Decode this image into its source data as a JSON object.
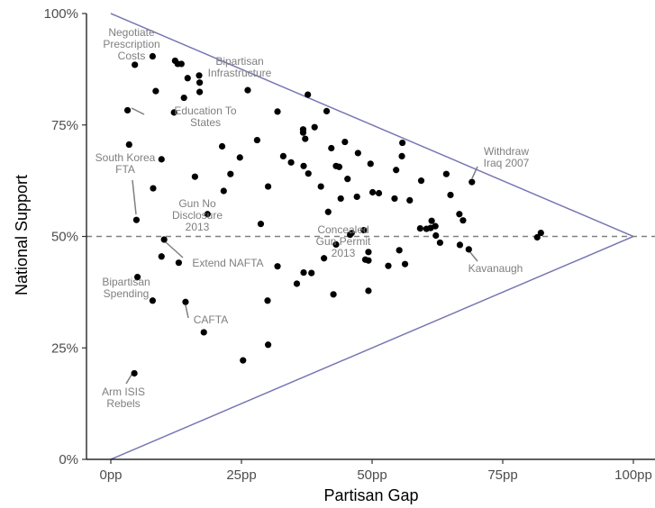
{
  "chart_data": {
    "type": "scatter",
    "xlabel": "Partisan Gap",
    "ylabel": "National Support",
    "xlim": [
      -5,
      100
    ],
    "ylim": [
      0,
      100
    ],
    "x_ticks": [
      0,
      25,
      50,
      75,
      100
    ],
    "x_tick_labels": [
      "0pp",
      "25pp",
      "50pp",
      "75pp",
      "100pp"
    ],
    "y_ticks": [
      0,
      25,
      50,
      75,
      100
    ],
    "y_tick_labels": [
      "0%",
      "25%",
      "50%",
      "75%",
      "100%"
    ],
    "grid": false,
    "colors": {
      "points": "#000000",
      "triangle": "#7777b3",
      "reference": "#808080",
      "annotation": "#7f7f7f"
    },
    "reference_line_y": 50,
    "boundary": [
      [
        0,
        100
      ],
      [
        100,
        50
      ],
      [
        0,
        0
      ]
    ],
    "points": [
      {
        "x": 8.0,
        "y": 90.4
      },
      {
        "x": 4.6,
        "y": 88.5
      },
      {
        "x": 12.3,
        "y": 89.4
      },
      {
        "x": 12.8,
        "y": 88.7
      },
      {
        "x": 13.5,
        "y": 88.7
      },
      {
        "x": 16.9,
        "y": 86.1
      },
      {
        "x": 14.7,
        "y": 85.5
      },
      {
        "x": 17.0,
        "y": 84.5
      },
      {
        "x": 8.6,
        "y": 82.6
      },
      {
        "x": 17.0,
        "y": 82.4
      },
      {
        "x": 26.2,
        "y": 82.8
      },
      {
        "x": 37.7,
        "y": 81.8
      },
      {
        "x": 14.0,
        "y": 81.1
      },
      {
        "x": 3.2,
        "y": 78.3
      },
      {
        "x": 12.1,
        "y": 77.8
      },
      {
        "x": 31.9,
        "y": 78.0
      },
      {
        "x": 41.3,
        "y": 78.1
      },
      {
        "x": 39.0,
        "y": 74.5
      },
      {
        "x": 36.8,
        "y": 74.0
      },
      {
        "x": 36.8,
        "y": 73.3
      },
      {
        "x": 37.2,
        "y": 71.9
      },
      {
        "x": 28.0,
        "y": 71.6
      },
      {
        "x": 44.8,
        "y": 71.2
      },
      {
        "x": 21.3,
        "y": 70.2
      },
      {
        "x": 42.2,
        "y": 69.8
      },
      {
        "x": 55.8,
        "y": 71.0
      },
      {
        "x": 3.5,
        "y": 70.6
      },
      {
        "x": 47.3,
        "y": 68.7
      },
      {
        "x": 55.7,
        "y": 68.0
      },
      {
        "x": 33.0,
        "y": 68.0
      },
      {
        "x": 24.7,
        "y": 67.7
      },
      {
        "x": 34.5,
        "y": 66.6
      },
      {
        "x": 9.7,
        "y": 67.3
      },
      {
        "x": 49.7,
        "y": 66.3
      },
      {
        "x": 43.1,
        "y": 65.8
      },
      {
        "x": 36.9,
        "y": 65.8
      },
      {
        "x": 43.7,
        "y": 65.6
      },
      {
        "x": 54.6,
        "y": 64.9
      },
      {
        "x": 64.2,
        "y": 64.0
      },
      {
        "x": 22.9,
        "y": 64.0
      },
      {
        "x": 37.8,
        "y": 64.1
      },
      {
        "x": 16.1,
        "y": 63.4
      },
      {
        "x": 45.3,
        "y": 62.9
      },
      {
        "x": 59.4,
        "y": 62.5
      },
      {
        "x": 69.1,
        "y": 62.2
      },
      {
        "x": 30.1,
        "y": 61.2
      },
      {
        "x": 40.2,
        "y": 61.2
      },
      {
        "x": 8.1,
        "y": 60.8
      },
      {
        "x": 21.6,
        "y": 60.2
      },
      {
        "x": 50.1,
        "y": 59.9
      },
      {
        "x": 51.3,
        "y": 59.7
      },
      {
        "x": 47.1,
        "y": 58.9
      },
      {
        "x": 44.0,
        "y": 58.5
      },
      {
        "x": 54.3,
        "y": 58.5
      },
      {
        "x": 57.2,
        "y": 58.1
      },
      {
        "x": 65.0,
        "y": 59.3
      },
      {
        "x": 41.6,
        "y": 55.5
      },
      {
        "x": 66.7,
        "y": 55.0
      },
      {
        "x": 18.5,
        "y": 55.0
      },
      {
        "x": 4.9,
        "y": 53.7
      },
      {
        "x": 61.4,
        "y": 53.5
      },
      {
        "x": 67.4,
        "y": 53.6
      },
      {
        "x": 28.7,
        "y": 52.8
      },
      {
        "x": 62.1,
        "y": 52.3
      },
      {
        "x": 59.2,
        "y": 51.8
      },
      {
        "x": 61.2,
        "y": 51.9
      },
      {
        "x": 60.4,
        "y": 51.7
      },
      {
        "x": 48.4,
        "y": 51.4
      },
      {
        "x": 46.1,
        "y": 50.8
      },
      {
        "x": 45.8,
        "y": 50.4
      },
      {
        "x": 62.2,
        "y": 50.2
      },
      {
        "x": 82.3,
        "y": 50.8
      },
      {
        "x": 81.6,
        "y": 49.8
      },
      {
        "x": 10.2,
        "y": 49.3
      },
      {
        "x": 63.0,
        "y": 48.6
      },
      {
        "x": 43.1,
        "y": 48.2
      },
      {
        "x": 66.8,
        "y": 48.1
      },
      {
        "x": 55.2,
        "y": 46.9
      },
      {
        "x": 68.5,
        "y": 47.1
      },
      {
        "x": 49.3,
        "y": 46.5
      },
      {
        "x": 9.7,
        "y": 45.5
      },
      {
        "x": 40.8,
        "y": 45.1
      },
      {
        "x": 48.7,
        "y": 44.8
      },
      {
        "x": 49.3,
        "y": 44.6
      },
      {
        "x": 13.0,
        "y": 44.1
      },
      {
        "x": 56.3,
        "y": 43.8
      },
      {
        "x": 53.1,
        "y": 43.4
      },
      {
        "x": 31.9,
        "y": 43.3
      },
      {
        "x": 36.9,
        "y": 41.9
      },
      {
        "x": 38.4,
        "y": 41.8
      },
      {
        "x": 5.1,
        "y": 40.9
      },
      {
        "x": 35.6,
        "y": 39.4
      },
      {
        "x": 49.3,
        "y": 37.8
      },
      {
        "x": 42.6,
        "y": 37.0
      },
      {
        "x": 30.0,
        "y": 35.6
      },
      {
        "x": 8.0,
        "y": 35.6
      },
      {
        "x": 14.3,
        "y": 35.3
      },
      {
        "x": 17.8,
        "y": 28.5
      },
      {
        "x": 30.1,
        "y": 25.7
      },
      {
        "x": 25.3,
        "y": 22.2
      },
      {
        "x": 4.5,
        "y": 19.3
      }
    ],
    "annotations": [
      {
        "lines": [
          "Negotiate",
          "Prescription",
          "Costs"
        ],
        "x": 4.6,
        "y": 88.5
      },
      {
        "lines": [
          "Bipartisan",
          "Infrastructure"
        ],
        "x": 16.9,
        "y": 86.1
      },
      {
        "lines": [
          "Education To",
          "States"
        ],
        "x": 3.2,
        "y": 78.3
      },
      {
        "lines": [
          "South Korea",
          "FTA"
        ],
        "x": 4.9,
        "y": 53.7
      },
      {
        "lines": [
          "Withdraw",
          "Iraq 2007"
        ],
        "x": 69.1,
        "y": 62.2
      },
      {
        "lines": [
          "Gun No",
          "Disclosure",
          "2013"
        ],
        "x": 18.5,
        "y": 55.0
      },
      {
        "lines": [
          "Concealed",
          "Gun Permit",
          "2013"
        ],
        "x": 43.1,
        "y": 48.2
      },
      {
        "lines": [
          "Kavanaugh"
        ],
        "x": 68.5,
        "y": 47.1
      },
      {
        "lines": [
          "Extend NAFTA"
        ],
        "x": 10.2,
        "y": 49.3
      },
      {
        "lines": [
          "Bipartisan",
          "Spending"
        ],
        "x": 8.0,
        "y": 35.6
      },
      {
        "lines": [
          "CAFTA"
        ],
        "x": 14.3,
        "y": 35.3
      },
      {
        "lines": [
          "Arm ISIS",
          "Rebels"
        ],
        "x": 4.5,
        "y": 19.3
      }
    ]
  }
}
